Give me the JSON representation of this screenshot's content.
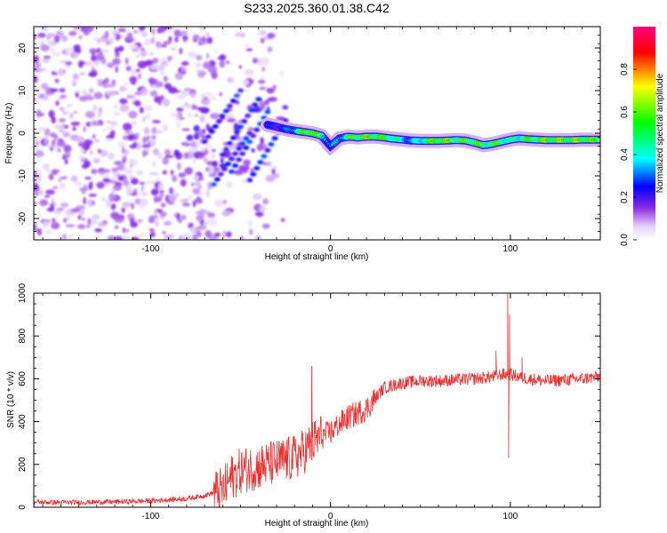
{
  "title": "S233.2025.360.01.38.C42",
  "colors": {
    "line": "#f03030",
    "axis": "#000000",
    "background": "#ffffff"
  },
  "chart_data": [
    {
      "type": "heatmap",
      "name": "spectrogram",
      "xlabel": "Height of straight line (km)",
      "ylabel": "Frequency (Hz)",
      "xlim": [
        -165,
        150
      ],
      "ylim": [
        -25,
        25
      ],
      "xticks": [
        -100,
        0,
        100
      ],
      "yticks": [
        -20,
        -10,
        0,
        10,
        20
      ],
      "colorbar": {
        "label": "Normalized spectral amplitude",
        "range": [
          0,
          1
        ],
        "ticks": [
          "0.0",
          "0.2",
          "0.4",
          "0.6",
          "0.8"
        ],
        "tick_values": [
          0,
          0.2,
          0.4,
          0.6,
          0.8
        ],
        "colormap": [
          "#ffffff",
          "#d8b6f4",
          "#8a2be2",
          "#0000ff",
          "#00ffff",
          "#00ff00",
          "#ffff00",
          "#ff0000",
          "#ff0080"
        ]
      },
      "ridge": {
        "x": [
          -35,
          -30,
          -25,
          -20,
          -15,
          -10,
          -5,
          0,
          5,
          10,
          15,
          20,
          25,
          30,
          35,
          40,
          45,
          50,
          55,
          60,
          65,
          70,
          75,
          80,
          85,
          90,
          95,
          100,
          105,
          110,
          115,
          120,
          125,
          130,
          135,
          140,
          145,
          150
        ],
        "freq": [
          2,
          1.5,
          1,
          0.6,
          0.3,
          0,
          -0.6,
          -3,
          -1.2,
          -0.8,
          -1,
          -0.8,
          -0.8,
          -1,
          -1.3,
          -1.5,
          -1.7,
          -1.8,
          -1.8,
          -1.8,
          -1.7,
          -1.6,
          -1.7,
          -2.2,
          -2.8,
          -2.5,
          -2,
          -1.5,
          -1.2,
          -1.4,
          -1.5,
          -1.6,
          -1.6,
          -1.6,
          -1.6,
          -1.5,
          -1.5,
          -1.5
        ],
        "amplitude": [
          0.35,
          0.35,
          0.4,
          0.55,
          0.8,
          0.95,
          0.6,
          0.4,
          0.5,
          0.7,
          0.85,
          0.9,
          0.9,
          0.85,
          0.75,
          0.6,
          0.5,
          0.65,
          0.85,
          0.95,
          0.9,
          0.8,
          0.75,
          0.85,
          0.7,
          0.75,
          0.8,
          0.6,
          0.7,
          0.8,
          0.85,
          0.95,
          0.95,
          0.95,
          0.95,
          0.95,
          0.9,
          0.85
        ]
      }
    },
    {
      "type": "line",
      "name": "snr",
      "xlabel": "Height of straight line (km)",
      "ylabel": "SNR (10 * v/v)",
      "xlim": [
        -165,
        150
      ],
      "ylim": [
        0,
        1000
      ],
      "xticks": [
        -100,
        0,
        100
      ],
      "yticks": [
        0,
        200,
        400,
        600,
        800,
        1000
      ],
      "trend": {
        "x": [
          -165,
          -150,
          -120,
          -100,
          -80,
          -70,
          -60,
          -55,
          -50,
          -40,
          -30,
          -20,
          -15,
          -10,
          -5,
          0,
          5,
          10,
          20,
          30,
          40,
          50,
          60,
          80,
          90,
          95,
          100,
          110,
          120,
          140,
          150
        ],
        "y": [
          25,
          22,
          25,
          30,
          40,
          55,
          80,
          140,
          170,
          190,
          210,
          230,
          260,
          300,
          330,
          350,
          390,
          420,
          460,
          560,
          580,
          590,
          590,
          600,
          610,
          620,
          620,
          600,
          590,
          600,
          610
        ]
      },
      "spikes": [
        {
          "x": -10.5,
          "y": 660
        },
        {
          "x": 98.5,
          "y": 1000
        },
        {
          "x": 99.5,
          "y": 900
        },
        {
          "x": 99.0,
          "y": 230
        },
        {
          "x": 92.0,
          "y": 730
        },
        {
          "x": 106.5,
          "y": 700
        }
      ]
    }
  ]
}
